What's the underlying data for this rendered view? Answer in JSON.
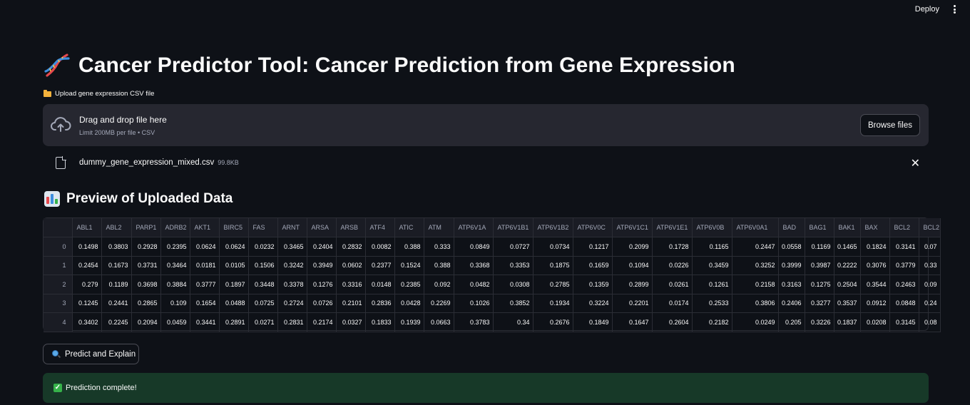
{
  "header": {
    "deploy_label": "Deploy"
  },
  "title": "Cancer Predictor Tool: Cancer Prediction from Gene Expression",
  "upload": {
    "label": "Upload gene expression CSV file",
    "drop_text": "Drag and drop file here",
    "limit_text": "Limit 200MB per file • CSV",
    "browse_label": "Browse files"
  },
  "file": {
    "name": "dummy_gene_expression_mixed.csv",
    "size": "99.8KB"
  },
  "preview": {
    "heading": "Preview of Uploaded Data",
    "columns": [
      "ABL1",
      "ABL2",
      "PARP1",
      "ADRB2",
      "AKT1",
      "BIRC5",
      "FAS",
      "ARNT",
      "ARSA",
      "ARSB",
      "ATF4",
      "ATIC",
      "ATM",
      "ATP6V1A",
      "ATP6V1B1",
      "ATP6V1B2",
      "ATP6V0C",
      "ATP6V1C1",
      "ATP6V1E1",
      "ATP6V0B",
      "ATP6V0A1",
      "BAD",
      "BAG1",
      "BAK1",
      "BAX",
      "BCL2",
      "BCL2"
    ],
    "rows": [
      {
        "index": "0",
        "values": [
          "0.1498",
          "0.3803",
          "0.2928",
          "0.2395",
          "0.0624",
          "0.0624",
          "0.0232",
          "0.3465",
          "0.2404",
          "0.2832",
          "0.0082",
          "0.388",
          "0.333",
          "0.0849",
          "0.0727",
          "0.0734",
          "0.1217",
          "0.2099",
          "0.1728",
          "0.1165",
          "0.2447",
          "0.0558",
          "0.1169",
          "0.1465",
          "0.1824",
          "0.3141",
          "0.07"
        ]
      },
      {
        "index": "1",
        "values": [
          "0.2454",
          "0.1673",
          "0.3731",
          "0.3464",
          "0.0181",
          "0.0105",
          "0.1506",
          "0.3242",
          "0.3949",
          "0.0602",
          "0.2377",
          "0.1524",
          "0.388",
          "0.3368",
          "0.3353",
          "0.1875",
          "0.1659",
          "0.1094",
          "0.0226",
          "0.3459",
          "0.3252",
          "0.3999",
          "0.3987",
          "0.2222",
          "0.3076",
          "0.3779",
          "0.33"
        ]
      },
      {
        "index": "2",
        "values": [
          "0.279",
          "0.1189",
          "0.3698",
          "0.3884",
          "0.3777",
          "0.1897",
          "0.3448",
          "0.3378",
          "0.1276",
          "0.3316",
          "0.0148",
          "0.2385",
          "0.092",
          "0.0482",
          "0.0308",
          "0.2785",
          "0.1359",
          "0.2899",
          "0.0261",
          "0.1261",
          "0.2158",
          "0.3163",
          "0.1275",
          "0.2504",
          "0.3544",
          "0.2463",
          "0.09"
        ]
      },
      {
        "index": "3",
        "values": [
          "0.1245",
          "0.2441",
          "0.2865",
          "0.109",
          "0.1654",
          "0.0488",
          "0.0725",
          "0.2724",
          "0.0726",
          "0.2101",
          "0.2836",
          "0.0428",
          "0.2269",
          "0.1026",
          "0.3852",
          "0.1934",
          "0.3224",
          "0.2201",
          "0.0174",
          "0.2533",
          "0.3806",
          "0.2406",
          "0.3277",
          "0.3537",
          "0.0912",
          "0.0848",
          "0.24"
        ]
      },
      {
        "index": "4",
        "values": [
          "0.3402",
          "0.2245",
          "0.2094",
          "0.0459",
          "0.3441",
          "0.2891",
          "0.0271",
          "0.2831",
          "0.2174",
          "0.0327",
          "0.1833",
          "0.1939",
          "0.0663",
          "0.3783",
          "0.34",
          "0.2676",
          "0.1849",
          "0.1647",
          "0.2604",
          "0.2182",
          "0.0249",
          "0.205",
          "0.3226",
          "0.1837",
          "0.0208",
          "0.3145",
          "0.08"
        ]
      }
    ]
  },
  "actions": {
    "predict_label": "Predict and Explain"
  },
  "status": {
    "success_text": "Prediction complete!"
  },
  "colors": {
    "background": "#0e1117",
    "surface": "#262730",
    "success_bg": "#173928",
    "success_check": "#36b24a"
  }
}
